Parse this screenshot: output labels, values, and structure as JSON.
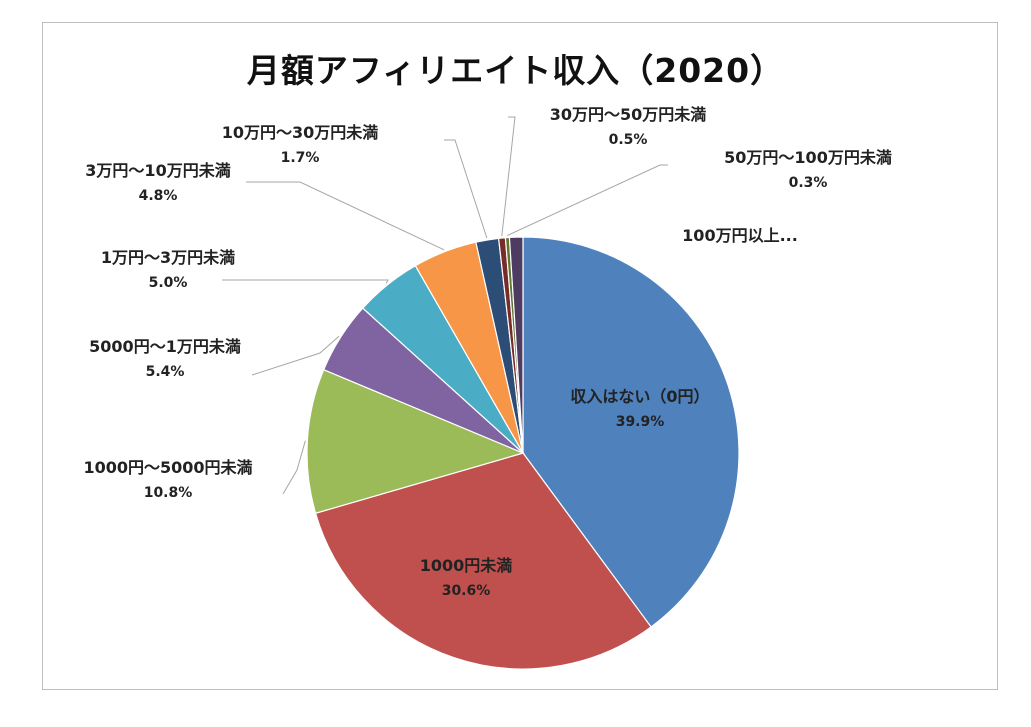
{
  "chart_data": {
    "type": "pie",
    "title": "月額アフィリエイト収入（2020）",
    "slices": [
      {
        "label": "収入はない（0円）",
        "value_text": "39.9%",
        "value": 39.9,
        "color": "#4f81bd"
      },
      {
        "label": "1000円未満",
        "value_text": "30.6%",
        "value": 30.6,
        "color": "#c0504d"
      },
      {
        "label": "1000円～5000円未満",
        "value_text": "10.8%",
        "value": 10.8,
        "color": "#9bbb59"
      },
      {
        "label": "5000円～1万円未満",
        "value_text": "5.4%",
        "value": 5.4,
        "color": "#8064a2"
      },
      {
        "label": "1万円～3万円未満",
        "value_text": "5.0%",
        "value": 5.0,
        "color": "#4bacc6"
      },
      {
        "label": "3万円～10万円未満",
        "value_text": "4.8%",
        "value": 4.8,
        "color": "#f79646"
      },
      {
        "label": "10万円～30万円未満",
        "value_text": "1.7%",
        "value": 1.7,
        "color": "#2c4d75"
      },
      {
        "label": "30万円～50万円未満",
        "value_text": "0.5%",
        "value": 0.5,
        "color": "#772c2a"
      },
      {
        "label": "50万円～100万円未満",
        "value_text": "0.3%",
        "value": 0.3,
        "color": "#5f7530"
      },
      {
        "label": "100万円以上...",
        "value_text": "",
        "value": 1.0,
        "color": "#4d3b62"
      }
    ]
  }
}
